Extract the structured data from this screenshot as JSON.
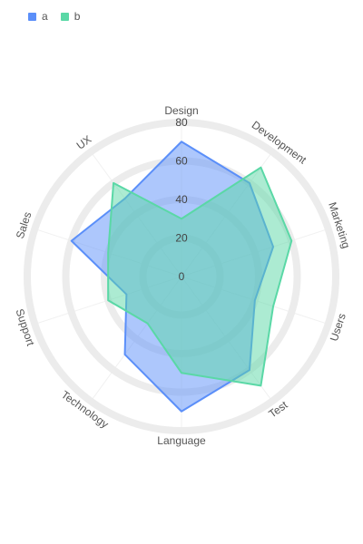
{
  "chart_data": {
    "type": "radar",
    "title": "",
    "categories": [
      "Design",
      "Development",
      "Marketing",
      "Users",
      "Test",
      "Language",
      "Technology",
      "Support",
      "Sales",
      "UX"
    ],
    "series": [
      {
        "name": "a",
        "values": [
          70,
          60,
          50,
          40,
          60,
          70,
          50,
          30,
          60,
          50
        ]
      },
      {
        "name": "b",
        "values": [
          30,
          70,
          60,
          50,
          70,
          50,
          30,
          40,
          40,
          60
        ]
      }
    ],
    "rlim": [
      0,
      80
    ],
    "ticks": [
      "0",
      "20",
      "40",
      "60",
      "80"
    ],
    "legend_position": "top-left",
    "colors": {
      "a": "#5B8FF9",
      "b": "#5AD8A6",
      "grid": "#ececec"
    }
  }
}
